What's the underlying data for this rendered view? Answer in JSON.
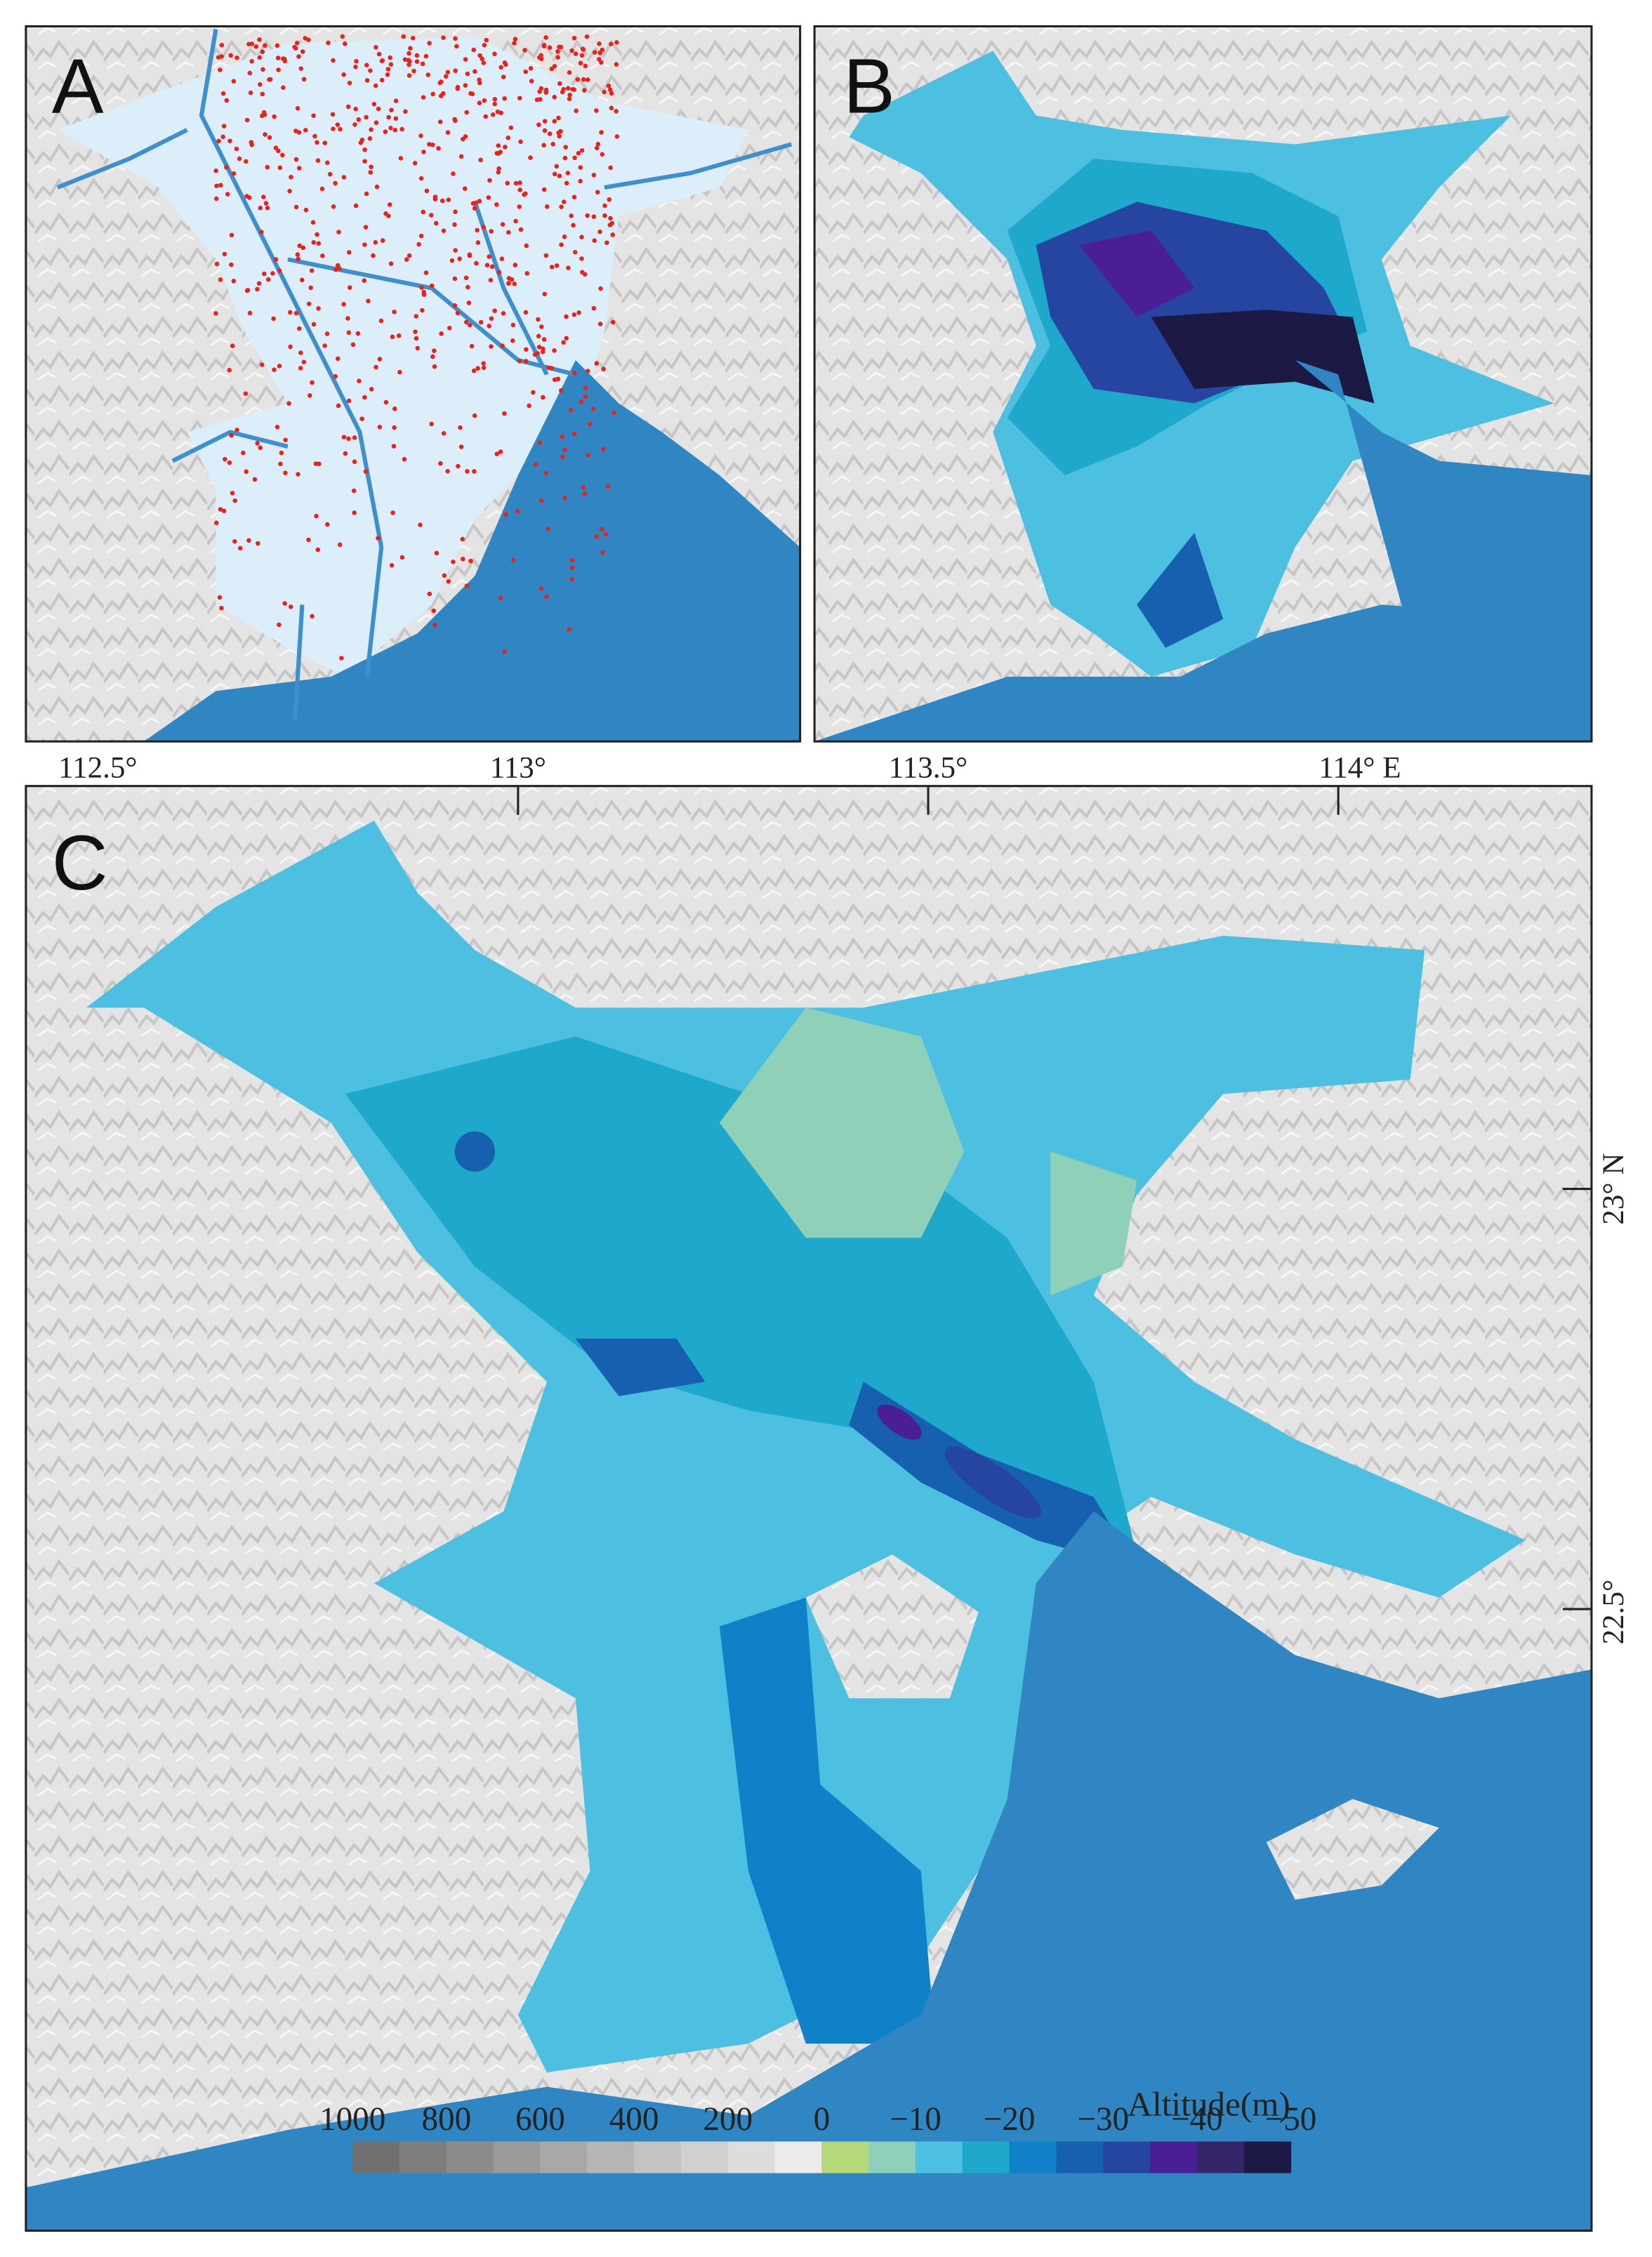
{
  "panels": {
    "a": {
      "label": "A"
    },
    "b": {
      "label": "B"
    },
    "c": {
      "label": "C"
    }
  },
  "longitude_labels": [
    "112.5°",
    "113°",
    "113.5°",
    "114° E"
  ],
  "latitude_labels": [
    "23° N",
    "22.5°"
  ],
  "legend": {
    "title": "Altitude(m)",
    "colors": [
      "#707070",
      "#7e7e7e",
      "#8c8c8c",
      "#9a9a9a",
      "#a8a8a8",
      "#b5b5b5",
      "#c3c3c3",
      "#d0d0d0",
      "#dddddd",
      "#ebebeb",
      "#b5d97a",
      "#8fd0b8",
      "#4dbfe0",
      "#1ea8cc",
      "#1080c8",
      "#1760b0",
      "#2545a0",
      "#4a1e96",
      "#35266a",
      "#1c1a45"
    ],
    "ticks": [
      1000,
      800,
      600,
      400,
      200,
      0,
      {
        "value": -10,
        "label": "−10"
      },
      {
        "value": -20,
        "label": "−20"
      },
      {
        "value": -30,
        "label": "−30"
      },
      {
        "value": -40,
        "label": "−40"
      },
      {
        "value": -50,
        "label": "−50"
      }
    ]
  }
}
